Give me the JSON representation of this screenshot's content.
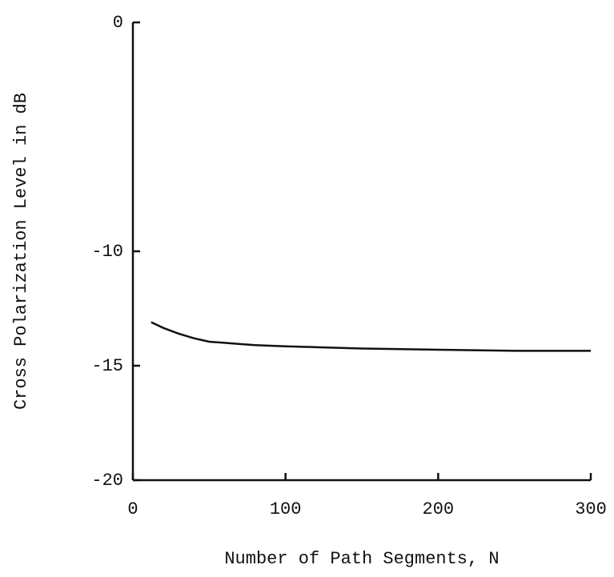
{
  "chart_data": {
    "type": "line",
    "x_label": "Number of Path Segments, N",
    "y_label": "Cross Polarization Level in dB",
    "x": [
      12,
      20,
      30,
      40,
      50,
      60,
      70,
      80,
      100,
      125,
      150,
      200,
      250,
      300
    ],
    "series": [
      {
        "color": "#111111",
        "values": [
          -13.1,
          -13.35,
          -13.6,
          -13.8,
          -13.95,
          -14.0,
          -14.05,
          -14.1,
          -14.15,
          -14.2,
          -14.25,
          -14.3,
          -14.35,
          -14.35
        ]
      }
    ],
    "xlim": [
      0,
      300
    ],
    "xticks": [
      0,
      100,
      200,
      300
    ],
    "ylim": [
      -20,
      0
    ],
    "yticks": [
      0,
      -10,
      -15,
      -20
    ]
  }
}
